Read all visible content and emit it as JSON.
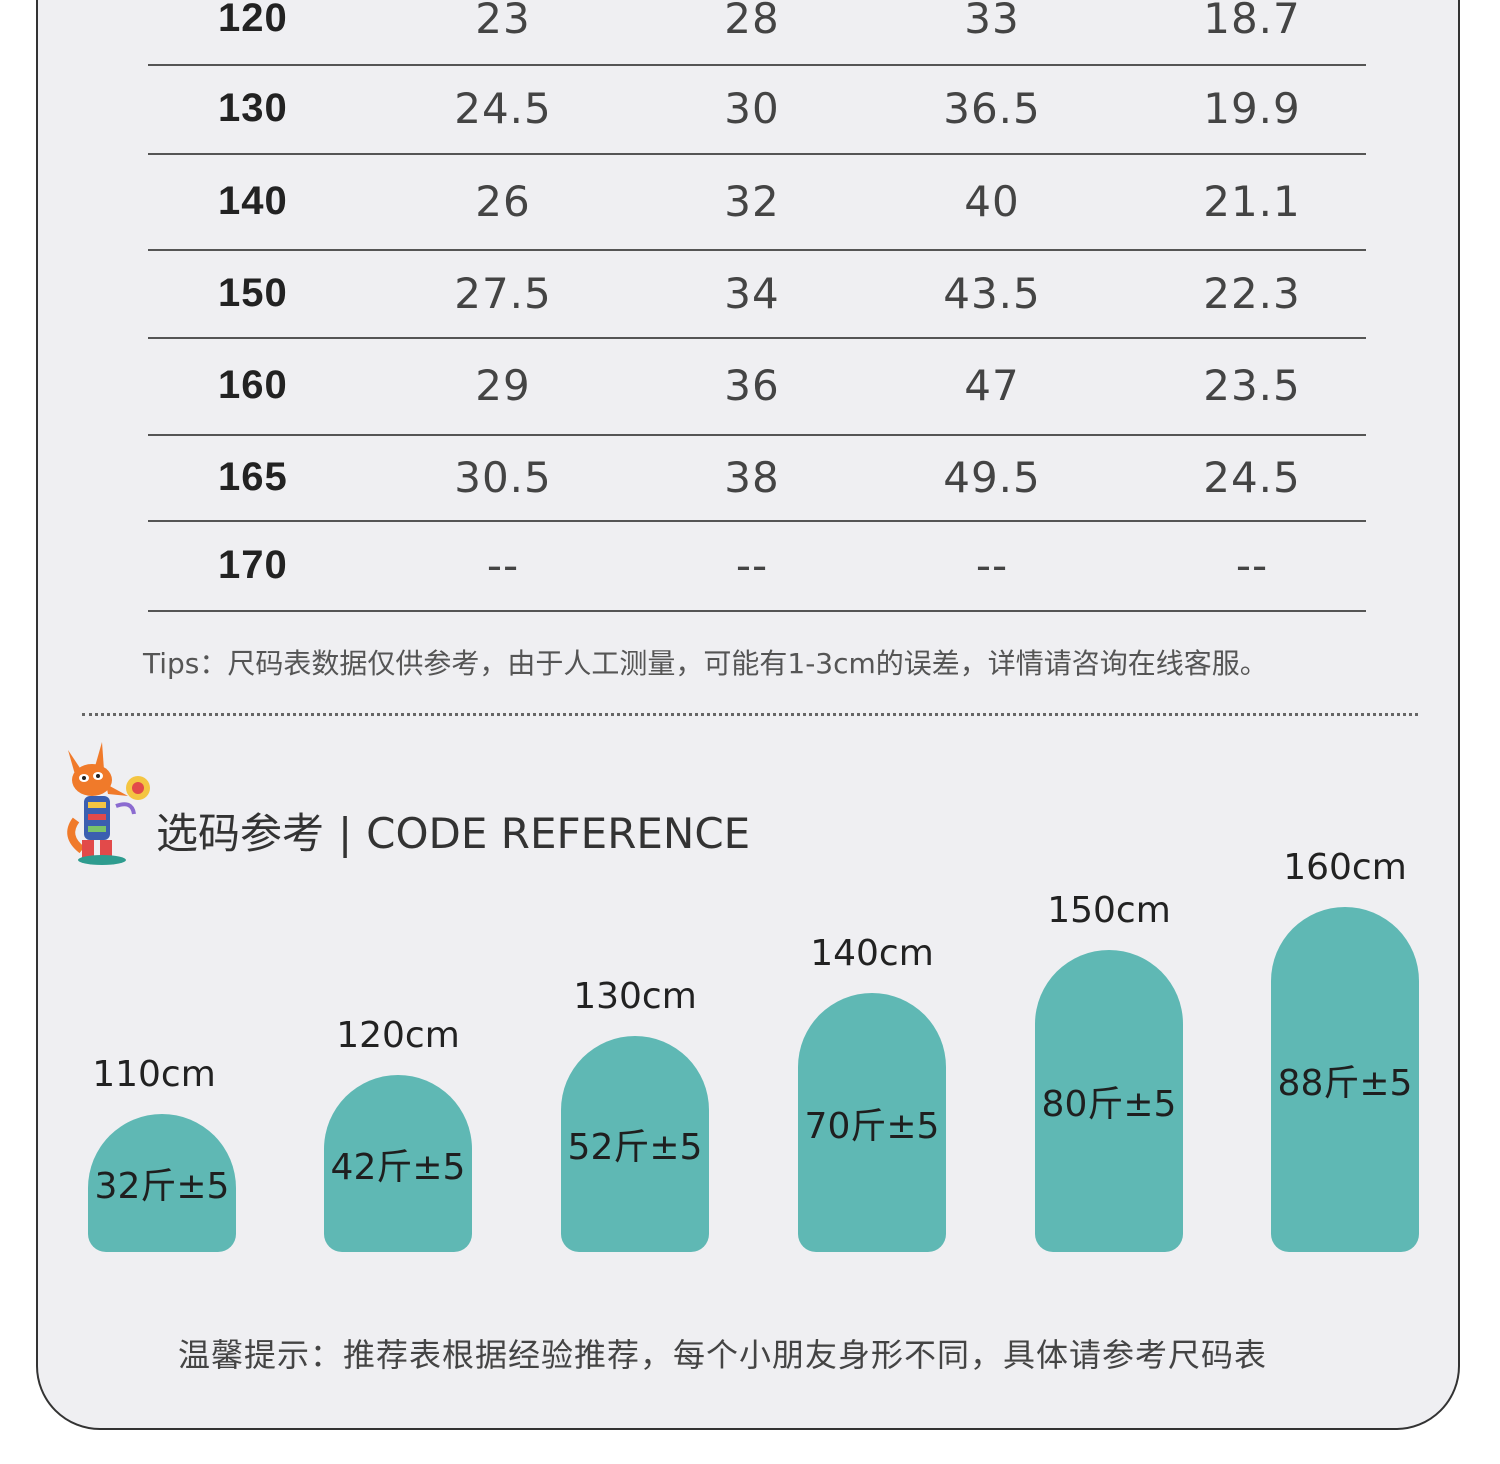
{
  "size_table": {
    "rows": [
      {
        "size": "120",
        "values": [
          "23",
          "28",
          "33",
          "18.7"
        ]
      },
      {
        "size": "130",
        "values": [
          "24.5",
          "30",
          "36.5",
          "19.9"
        ]
      },
      {
        "size": "140",
        "values": [
          "26",
          "32",
          "40",
          "21.1"
        ]
      },
      {
        "size": "150",
        "values": [
          "27.5",
          "34",
          "43.5",
          "22.3"
        ]
      },
      {
        "size": "160",
        "values": [
          "29",
          "36",
          "47",
          "23.5"
        ]
      },
      {
        "size": "165",
        "values": [
          "30.5",
          "38",
          "49.5",
          "24.5"
        ]
      },
      {
        "size": "170",
        "values": [
          "--",
          "--",
          "--",
          "--"
        ]
      }
    ]
  },
  "tips": "Tips：尺码表数据仅供参考，由于人工测量，可能有1-3cm的误差，详情请咨询在线客服。",
  "section": {
    "title_cn": "选码参考",
    "separator": "|",
    "title_en": "CODE REFERENCE"
  },
  "reference": [
    {
      "height": "110cm",
      "weight": "32斤±5",
      "height_value_cm": 110
    },
    {
      "height": "120cm",
      "weight": "42斤±5",
      "height_value_cm": 120
    },
    {
      "height": "130cm",
      "weight": "52斤±5",
      "height_value_cm": 130
    },
    {
      "height": "140cm",
      "weight": "70斤±5",
      "height_value_cm": 140
    },
    {
      "height": "150cm",
      "weight": "80斤±5",
      "height_value_cm": 150
    },
    {
      "height": "160cm",
      "weight": "88斤±5",
      "height_value_cm": 160
    }
  ],
  "footer_tip": "温馨提示：推荐表根据经验推荐，每个小朋友身形不同，具体请参考尺码表",
  "colors": {
    "bar": "#5fb8b4",
    "card_bg": "#efeff2"
  },
  "icons": {
    "mascot": "fox-mascot-icon"
  }
}
